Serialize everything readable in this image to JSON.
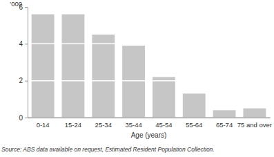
{
  "chart_data": {
    "type": "bar",
    "ylabel": "'000",
    "xlabel": "Age (years)",
    "annotations": [
      "Source: ABS data available on request, Estimated Resident Population Collection."
    ],
    "categories": [
      "0-14",
      "15-24",
      "25-34",
      "35-44",
      "45-54",
      "55-64",
      "65-74",
      "75 and over"
    ],
    "values": [
      5.6,
      5.6,
      4.5,
      3.9,
      2.2,
      1.3,
      0.4,
      0.5
    ],
    "color": "#c6c6c6",
    "ylim": [
      0,
      6
    ],
    "yticks": [
      0,
      2,
      4,
      6
    ],
    "grid": true
  }
}
